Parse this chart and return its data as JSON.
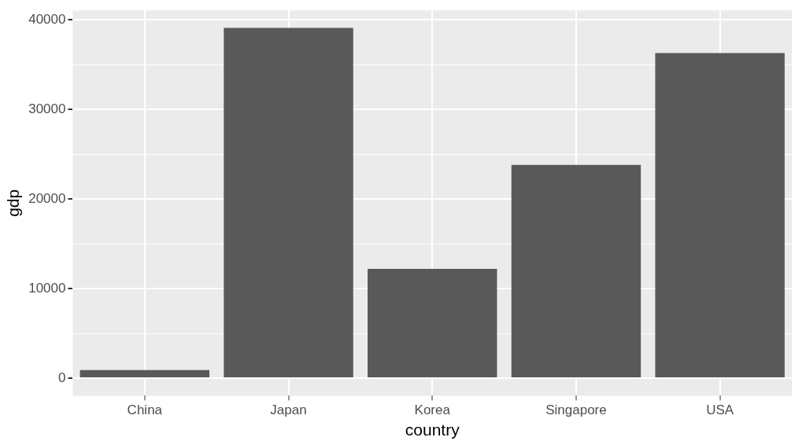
{
  "chart_data": {
    "type": "bar",
    "xlabel": "country",
    "ylabel": "gdp",
    "categories": [
      "China",
      "Japan",
      "Korea",
      "Singapore",
      "USA"
    ],
    "values": [
      900,
      39100,
      12200,
      23800,
      36300
    ],
    "color": "#595959",
    "ylim": [
      -1955,
      41055
    ],
    "yticks": [
      0,
      {
        "value": 5000,
        "label": null
      },
      10000,
      {
        "value": 15000,
        "label": null
      },
      20000,
      {
        "value": 25000,
        "label": null
      },
      30000,
      {
        "value": 35000,
        "label": null
      },
      40000
    ],
    "grid": true,
    "legend": false
  }
}
